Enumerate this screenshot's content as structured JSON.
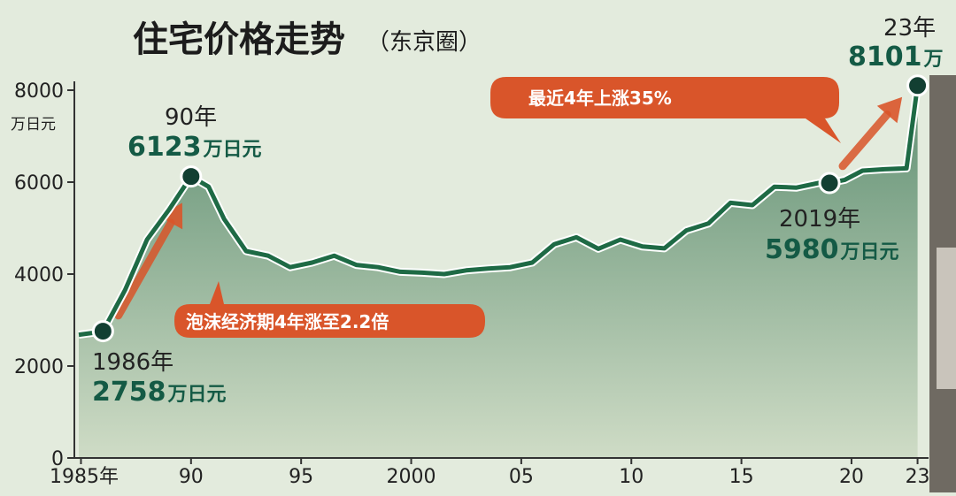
{
  "chart_data": {
    "type": "area",
    "title": "住宅价格走势",
    "subtitle": "（东京圈）",
    "ylabel": "万日元",
    "ylim": [
      0,
      8000
    ],
    "yticks": [
      "0",
      "2000",
      "4000",
      "6000",
      "8000"
    ],
    "xlim": [
      1984.7,
      2023.5
    ],
    "xtick_values": [
      1985,
      1990,
      1995,
      2000,
      2005,
      2010,
      2015,
      2020,
      2023
    ],
    "xtick_labels": [
      "1985年",
      "90",
      "95",
      "2000",
      "05",
      "10",
      "15",
      "20",
      "23"
    ],
    "grid": false,
    "colors": {
      "line": "#1e6a45",
      "fill_top": "#5f8f72",
      "fill_bottom": "#cfdcc6",
      "accent": "#d9552a",
      "marker": "#123f32"
    },
    "series": [
      {
        "points": [
          [
            1984.9,
            2680
          ],
          [
            1985.5,
            2720
          ],
          [
            1986,
            2758
          ],
          [
            1987,
            3650
          ],
          [
            1988,
            4750
          ],
          [
            1989,
            5400
          ],
          [
            1990,
            6123
          ],
          [
            1990.8,
            5900
          ],
          [
            1991.5,
            5200
          ],
          [
            1992.5,
            4500
          ],
          [
            1993.5,
            4400
          ],
          [
            1994.5,
            4150
          ],
          [
            1995.5,
            4250
          ],
          [
            1996.5,
            4400
          ],
          [
            1997.5,
            4200
          ],
          [
            1998.5,
            4150
          ],
          [
            1999.5,
            4050
          ],
          [
            2000.5,
            4030
          ],
          [
            2001.5,
            4000
          ],
          [
            2002.5,
            4080
          ],
          [
            2003.5,
            4120
          ],
          [
            2004.5,
            4150
          ],
          [
            2005.5,
            4250
          ],
          [
            2006.5,
            4650
          ],
          [
            2007.5,
            4800
          ],
          [
            2008.5,
            4550
          ],
          [
            2009.5,
            4750
          ],
          [
            2010.5,
            4600
          ],
          [
            2011.5,
            4560
          ],
          [
            2012.5,
            4950
          ],
          [
            2013.5,
            5100
          ],
          [
            2014.5,
            5550
          ],
          [
            2015.5,
            5500
          ],
          [
            2016.5,
            5900
          ],
          [
            2017.5,
            5880
          ],
          [
            2018.5,
            5980
          ],
          [
            2019,
            5980
          ],
          [
            2019.7,
            6050
          ],
          [
            2020.5,
            6250
          ],
          [
            2021.5,
            6280
          ],
          [
            2022.5,
            6300
          ],
          [
            2023,
            8101
          ]
        ]
      }
    ],
    "highlights": [
      {
        "year": 1986,
        "value": 2758,
        "year_label": "1986年",
        "value_label": "2758",
        "unit": "万日元"
      },
      {
        "year": 1990,
        "value": 6123,
        "year_label": "90年",
        "value_label": "6123",
        "unit": "万日元"
      },
      {
        "year": 2019,
        "value": 5980,
        "year_label": "2019年",
        "value_label": "5980",
        "unit": "万日元"
      },
      {
        "year": 2023,
        "value": 8101,
        "year_label": "23年",
        "value_label": "8101",
        "unit": "万"
      }
    ],
    "callouts": [
      {
        "text": "泡沫经济期4年涨至2.2倍"
      },
      {
        "text": "最近4年上涨35%"
      }
    ]
  }
}
